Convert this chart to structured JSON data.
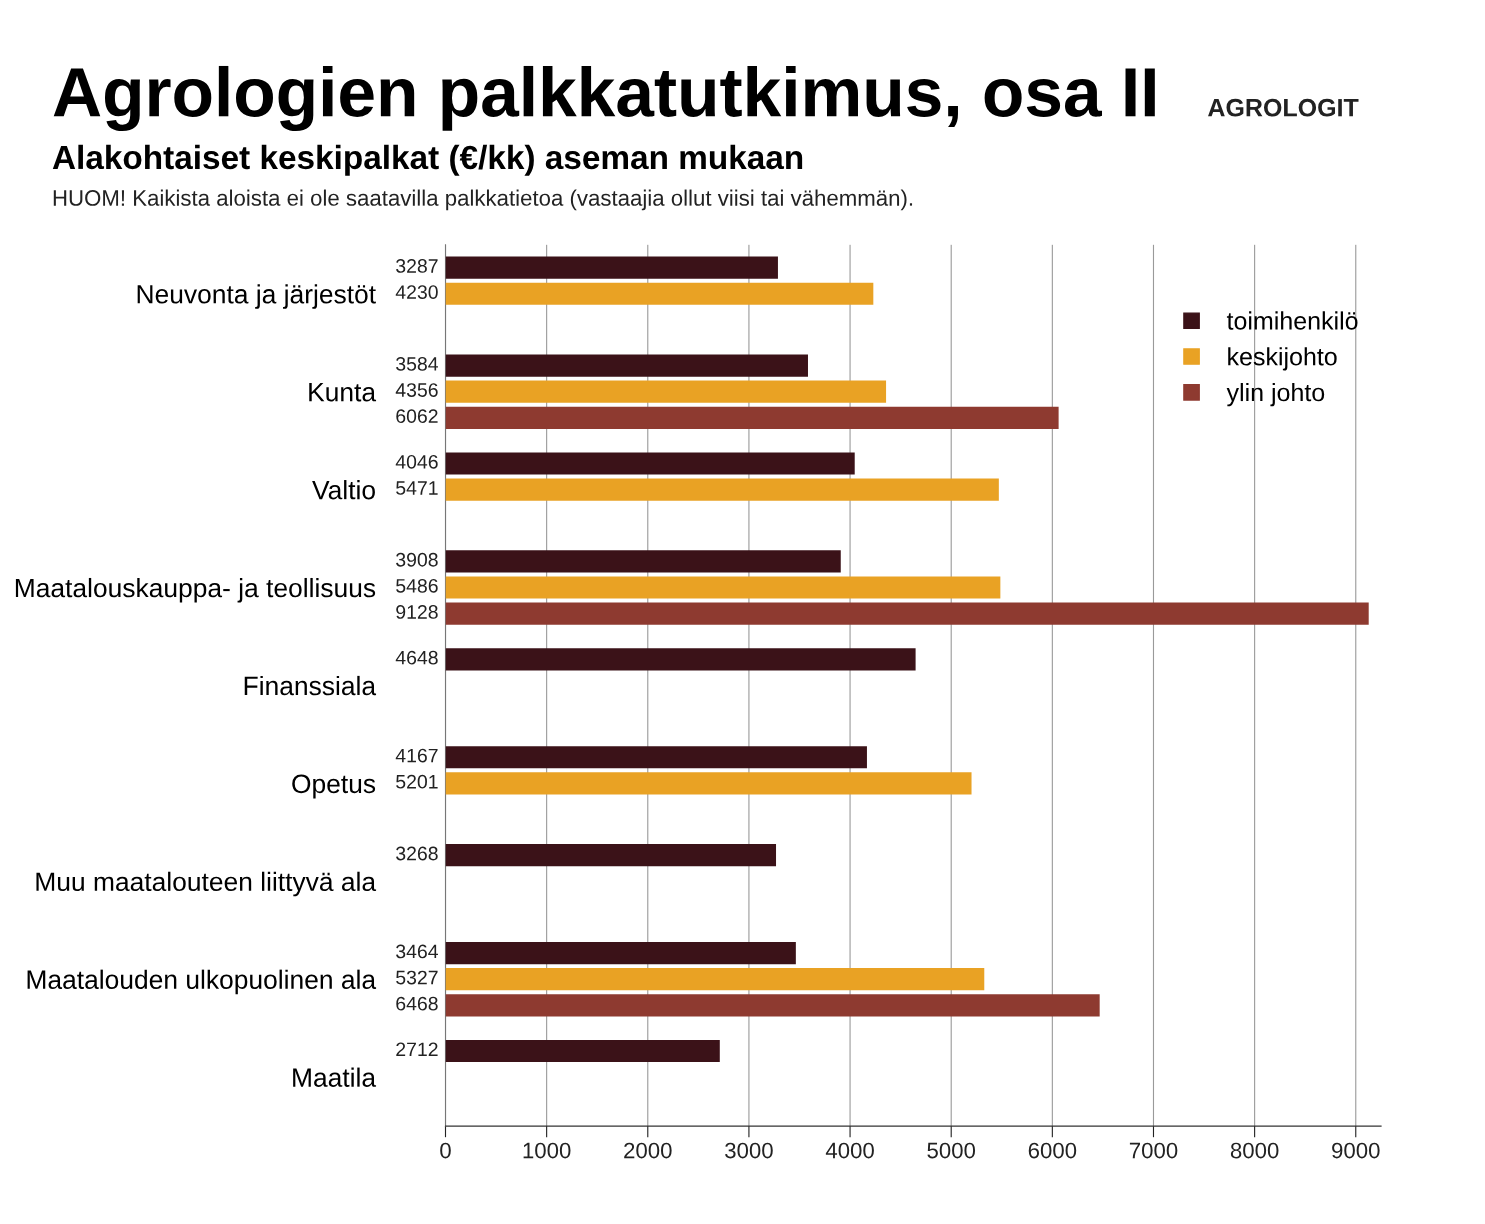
{
  "chart_data": {
    "type": "bar",
    "orientation": "horizontal",
    "title": "Agrologien palkkatutkimus, osa II",
    "subtitle": "Alakohtaiset keskipalkat (€/kk) aseman mukaan",
    "annotations": [
      "HUOM! Kaikista aloista ei ole saatavilla palkkatietoa (vastaajia ollut viisi tai vähemmän).",
      "AGROLOGIT"
    ],
    "categories": [
      "Neuvonta ja järjestöt",
      "Kunta",
      "Valtio",
      "Maatalouskauppa- ja teollisuus",
      "Finanssiala",
      "Opetus",
      "Muu maatalouteen liittyvä ala",
      "Maatalouden ulkopuolinen ala",
      "Maatila"
    ],
    "series": [
      {
        "name": "toimihenkilö",
        "color": "#3b1218",
        "values": [
          3287,
          3584,
          4046,
          3908,
          4648,
          4167,
          3268,
          3464,
          2712
        ]
      },
      {
        "name": "keskijohto",
        "color": "#e9a224",
        "values": [
          4230,
          4356,
          5471,
          5486,
          null,
          5201,
          null,
          5327,
          null
        ]
      },
      {
        "name": "ylin johto",
        "color": "#8e3a30",
        "values": [
          null,
          6062,
          null,
          9128,
          null,
          null,
          null,
          6468,
          null
        ]
      }
    ],
    "xlim": [
      0,
      9250
    ],
    "xticks": [
      0,
      1000,
      2000,
      3000,
      4000,
      5000,
      6000,
      7000,
      8000,
      9000
    ],
    "grid": "x",
    "legend": "top right",
    "data_labels": true
  }
}
